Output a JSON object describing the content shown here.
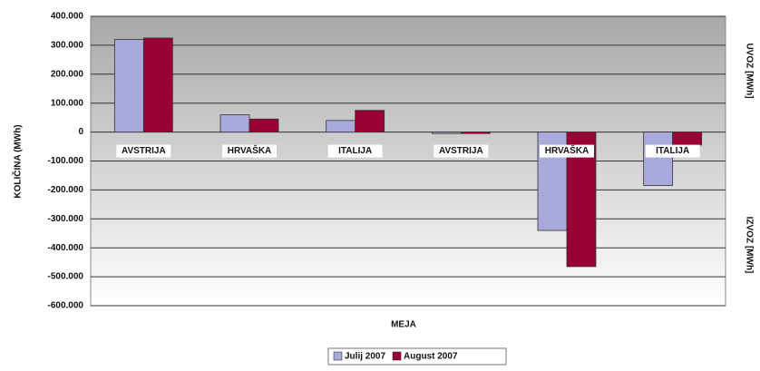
{
  "chart_data": {
    "type": "bar",
    "ylabel": "KOLIČINA (MWh)",
    "xlabel": "MEJA",
    "right_labels": [
      "UVOZ [MWh]",
      "IZVOZ [MWh]"
    ],
    "categories": [
      "AVSTRIJA",
      "HRVAŠKA",
      "ITALIJA",
      "AVSTRIJA",
      "HRVAŠKA",
      "ITALIJA"
    ],
    "series": [
      {
        "name": "Julij 2007",
        "color": "#a9a9dc",
        "values": [
          320000,
          60000,
          40000,
          -5000,
          -340000,
          -185000
        ]
      },
      {
        "name": "August 2007",
        "color": "#990033",
        "values": [
          325000,
          45000,
          75000,
          -5000,
          -465000,
          -45000
        ]
      }
    ],
    "ylim": [
      -600000,
      400000
    ],
    "yticks": [
      {
        "value": -600000,
        "label": "-600.000"
      },
      {
        "value": -500000,
        "label": "-500.000"
      },
      {
        "value": -400000,
        "label": "-400.000"
      },
      {
        "value": -300000,
        "label": "-300.000"
      },
      {
        "value": -200000,
        "label": "-200.000"
      },
      {
        "value": -100000,
        "label": "-100.000"
      },
      0,
      {
        "value": 100000,
        "label": "100.000"
      },
      {
        "value": 200000,
        "label": "200.000"
      },
      {
        "value": 300000,
        "label": "300.000"
      },
      {
        "value": 400000,
        "label": "400.000"
      }
    ],
    "grid": true
  }
}
